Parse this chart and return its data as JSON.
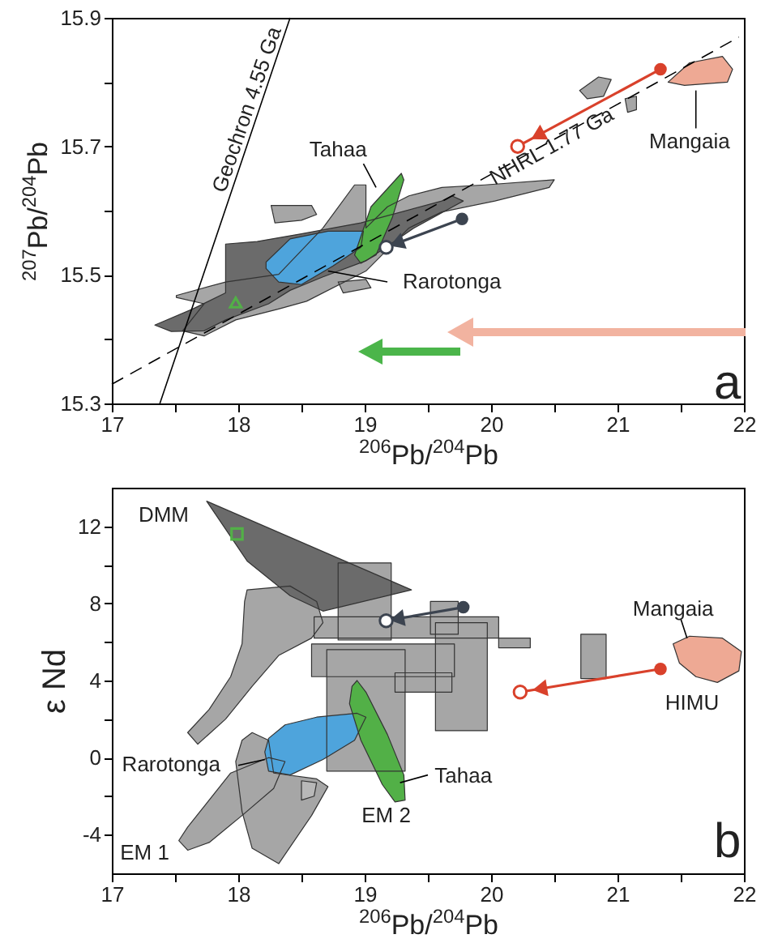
{
  "chart_data": [
    {
      "type": "area",
      "xlabel": "$^{206}$Pb/$^{204}$Pb",
      "ylabel": "$^{207}$Pb/$^{204}$Pb",
      "xlim": [
        17,
        22
      ],
      "ylim": [
        15.3,
        15.9
      ],
      "xticks": [
        17,
        {
          "value": 17.5,
          "label": null
        },
        18,
        {
          "value": 18.5,
          "label": null
        },
        19,
        {
          "value": 19.5,
          "label": null
        },
        20,
        {
          "value": 20.5,
          "label": null
        },
        21,
        {
          "value": 21.5,
          "label": null
        },
        22
      ],
      "yticks": [
        15.3,
        {
          "value": 15.4,
          "label": null
        },
        15.5,
        {
          "value": 15.6,
          "label": null
        },
        15.7,
        {
          "value": 15.8,
          "label": null
        },
        15.9
      ],
      "series": [
        {
          "type": "area",
          "color": "#a6a6a6",
          "x": [
            17.51,
            17.9,
            18.32,
            18.67,
            18.92,
            19.01,
            19.01,
            19.18,
            19.35,
            19.61,
            19.95,
            20.5,
            20.46,
            20.03,
            19.61,
            19.35,
            19.01,
            18.54,
            18.32,
            17.98,
            17.73,
            17.56,
            17.73,
            17.51
          ],
          "values": [
            15.468,
            15.489,
            15.501,
            15.573,
            15.64,
            15.64,
            15.573,
            15.606,
            15.623,
            15.636,
            15.64,
            15.648,
            15.636,
            15.615,
            15.598,
            15.573,
            15.506,
            15.459,
            15.447,
            15.43,
            15.405,
            15.413,
            15.455,
            15.465
          ]
        },
        {
          "type": "area",
          "color": "#6b6b6b",
          "x": [
            17.9,
            18.15,
            18.5,
            18.97,
            19.61,
            19.69,
            19.78,
            19.39,
            19.01,
            18.67,
            18.41,
            18.24,
            17.9,
            17.73,
            17.47,
            17.34,
            17.64,
            17.9,
            17.9
          ],
          "values": [
            15.548,
            15.552,
            15.564,
            15.581,
            15.615,
            15.623,
            15.615,
            15.573,
            15.522,
            15.497,
            15.476,
            15.455,
            15.43,
            15.413,
            15.412,
            15.422,
            15.447,
            15.472,
            15.514
          ]
        },
        {
          "type": "area",
          "color": "#a6a6a6",
          "x": [
            18.26,
            18.58,
            18.62,
            18.5,
            18.29
          ],
          "values": [
            15.608,
            15.608,
            15.594,
            15.585,
            15.581
          ]
        },
        {
          "type": "area",
          "color": "#a6a6a6",
          "x": [
            20.7,
            20.85,
            20.95,
            20.89,
            20.76
          ],
          "values": [
            15.787,
            15.808,
            15.804,
            15.778,
            15.774
          ]
        },
        {
          "type": "area",
          "color": "#a6a6a6",
          "x": [
            21.06,
            21.15,
            21.15,
            21.08
          ],
          "values": [
            15.774,
            15.778,
            15.757,
            15.753
          ]
        },
        {
          "type": "area",
          "color": "#a6a6a6",
          "x": [
            18.79,
            19.01,
            19.05,
            18.83
          ],
          "values": [
            15.489,
            15.493,
            15.48,
            15.472
          ]
        },
        {
          "type": "area",
          "color": "#4ea4dc",
          "x": [
            18.22,
            18.41,
            18.71,
            18.99,
            18.97,
            18.75,
            18.5,
            18.32,
            18.22
          ],
          "values": [
            15.52,
            15.556,
            15.568,
            15.568,
            15.543,
            15.514,
            15.485,
            15.489,
            15.51
          ]
        },
        {
          "type": "area",
          "color": "#52b047",
          "x": [
            18.92,
            19.05,
            19.29,
            19.31,
            19.22,
            19.09,
            18.97
          ],
          "values": [
            15.531,
            15.606,
            15.658,
            15.648,
            15.59,
            15.531,
            15.518
          ]
        },
        {
          "type": "area",
          "color": "#eea994",
          "x": [
            21.4,
            21.57,
            21.83,
            21.91,
            21.87,
            21.53
          ],
          "values": [
            15.8,
            15.83,
            15.84,
            15.82,
            15.8,
            15.795
          ]
        },
        {
          "type": "line",
          "color": "#000000",
          "x": [
            17.38,
            18.41
          ],
          "values": [
            15.3,
            15.9
          ]
        },
        {
          "type": "line",
          "color": "#000000",
          "line_style": "dashed",
          "x": [
            17,
            21.96
          ],
          "values": [
            15.33,
            15.87
          ]
        },
        {
          "type": "line",
          "color": "#000000",
          "x": [
            18.99,
            19.09
          ],
          "values": [
            15.673,
            15.636
          ]
        },
        {
          "type": "line",
          "color": "#000000",
          "x": [
            19.18,
            18.71
          ],
          "values": [
            15.489,
            15.506
          ]
        },
        {
          "type": "line",
          "color": "#000000",
          "x": [
            21.62,
            21.62
          ],
          "values": [
            15.787,
            15.728
          ]
        },
        {
          "type": "line",
          "color": "#d9412b",
          "marker": "circle",
          "x": [
            21.34,
            20.21
          ],
          "values": [
            15.82,
            15.7
          ]
        },
        {
          "type": "line",
          "color": "#3c4450",
          "marker": "circle",
          "x": [
            19.77,
            19.17
          ],
          "values": [
            15.587,
            15.543
          ]
        },
        {
          "type": "scatter",
          "color": "#52b047",
          "marker": "triangle",
          "x": [
            17.98
          ],
          "values": [
            15.457
          ]
        }
      ],
      "annotations": [
        "Geochron 4.55 Ga",
        "NHRL 1.77 Ga",
        "Tahaa",
        "Rarotonga",
        "Mangaia",
        "a"
      ]
    },
    {
      "type": "area",
      "xlabel": "$^{206}$Pb/$^{204}$Pb",
      "ylabel": "ε Nd",
      "xlim": [
        17,
        22
      ],
      "ylim": [
        -6,
        14
      ],
      "xticks": [
        17,
        {
          "value": 17.5,
          "label": null
        },
        18,
        {
          "value": 18.5,
          "label": null
        },
        19,
        {
          "value": 19.5,
          "label": null
        },
        20,
        {
          "value": 20.5,
          "label": null
        },
        21,
        {
          "value": 21.5,
          "label": null
        },
        22
      ],
      "yticks": [
        -4,
        {
          "value": -2,
          "label": null
        },
        0,
        {
          "value": 2,
          "label": null
        },
        4,
        {
          "value": 6,
          "label": null
        },
        8,
        {
          "value": 10,
          "label": null
        },
        12
      ],
      "series": [
        {
          "type": "area",
          "color": "#a6a6a6",
          "x": [
            18.79,
            19.21,
            19.21,
            18.79
          ],
          "values": [
            10.1,
            10.1,
            6.1,
            6.1
          ]
        },
        {
          "type": "area",
          "color": "#a6a6a6",
          "x": [
            18.07,
            18.41,
            18.62,
            18.67,
            18.58,
            18.32,
            18.11,
            17.9,
            17.68,
            17.6,
            17.77,
            17.94,
            18.03,
            18.05
          ],
          "values": [
            8.7,
            8.9,
            8.1,
            7,
            6.2,
            5.3,
            3.7,
            2,
            0.7,
            1.3,
            2.5,
            4.2,
            5.9,
            8.1
          ]
        },
        {
          "type": "area",
          "color": "#6b6b6b",
          "x": [
            17.75,
            19.37,
            18.67,
            18.41,
            18.07
          ],
          "values": [
            13.3,
            8.7,
            7.6,
            8.4,
            10.2
          ]
        },
        {
          "type": "area",
          "color": "#a6a6a6",
          "x": [
            18.6,
            20.06,
            20.06,
            18.6
          ],
          "values": [
            7.3,
            7.3,
            6.2,
            6.2
          ]
        },
        {
          "type": "area",
          "color": "#a6a6a6",
          "x": [
            19.52,
            19.74,
            19.74,
            19.52
          ],
          "values": [
            8.1,
            8.1,
            6.4,
            6.4
          ]
        },
        {
          "type": "area",
          "color": "#a6a6a6",
          "x": [
            18.58,
            19.71,
            19.71,
            18.58
          ],
          "values": [
            5.9,
            5.9,
            4.2,
            4.2
          ]
        },
        {
          "type": "area",
          "color": "#a6a6a6",
          "x": [
            19.56,
            19.97,
            19.97,
            19.56
          ],
          "values": [
            7,
            7,
            1.4,
            1.4
          ]
        },
        {
          "type": "area",
          "color": "#a6a6a6",
          "x": [
            18.7,
            19.32,
            19.32,
            18.7
          ],
          "values": [
            5.6,
            5.6,
            -0.7,
            -0.7
          ]
        },
        {
          "type": "area",
          "color": "#a6a6a6",
          "x": [
            19.24,
            19.69,
            19.69,
            19.24
          ],
          "values": [
            4.4,
            4.4,
            3.4,
            3.4
          ]
        },
        {
          "type": "area",
          "color": "#a6a6a6",
          "x": [
            20.06,
            20.31,
            20.31,
            20.06
          ],
          "values": [
            6.2,
            6.2,
            5.7,
            5.7
          ]
        },
        {
          "type": "area",
          "color": "#a6a6a6",
          "x": [
            20.71,
            20.91,
            20.91,
            20.71
          ],
          "values": [
            6.4,
            6.4,
            4.1,
            4.1
          ]
        },
        {
          "type": "area",
          "color": "#a6a6a6",
          "x": [
            17.53,
            17.6,
            17.94,
            18.24,
            18.37,
            18.28,
            18.03,
            17.77,
            17.6
          ],
          "values": [
            -4.3,
            -3.6,
            -0.8,
            0,
            -0.2,
            -1.6,
            -3,
            -4.4,
            -4.8
          ]
        },
        {
          "type": "area",
          "color": "#a6a6a6",
          "x": [
            18.03,
            18.11,
            18.24,
            18.28,
            18.62,
            18.71,
            18.58,
            18.32,
            18.11,
            18.03,
            17.98
          ],
          "values": [
            0.9,
            1.3,
            0.9,
            -0.8,
            -1.1,
            -1.5,
            -3,
            -5.5,
            -4.7,
            -2.8,
            -0.2
          ]
        },
        {
          "type": "area",
          "color": "#b8b8b8",
          "x": [
            18.5,
            18.62,
            18.6,
            18.5
          ],
          "values": [
            -1.2,
            -1.3,
            -2,
            -2.2
          ]
        },
        {
          "type": "area",
          "color": "#4ea4dc",
          "x": [
            18.24,
            18.37,
            18.62,
            18.94,
            19.01,
            18.92,
            18.67,
            18.41,
            18.24,
            18.21
          ],
          "values": [
            1,
            1.7,
            2.1,
            2.3,
            2.1,
            0.9,
            -0.1,
            -0.9,
            -0.7,
            0.3
          ]
        },
        {
          "type": "area",
          "color": "#52b047",
          "x": [
            18.9,
            18.94,
            19.01,
            19.18,
            19.31,
            19.32,
            19.24,
            19.14,
            18.97,
            18.88
          ],
          "values": [
            3.7,
            4,
            3.4,
            1.2,
            -0.9,
            -2.2,
            -2.3,
            -1.4,
            0.9,
            2.8
          ]
        },
        {
          "type": "area",
          "color": "#eea994",
          "x": [
            21.44,
            21.57,
            21.83,
            21.98,
            21.96,
            21.79,
            21.62,
            21.49
          ],
          "values": [
            5.9,
            6.3,
            6.2,
            5.5,
            4.5,
            3.9,
            4.2,
            4.9
          ]
        },
        {
          "type": "line",
          "color": "#000000",
          "x": [
            18.0,
            18.21
          ],
          "values": [
            -0.4,
            -0.1
          ]
        },
        {
          "type": "line",
          "color": "#000000",
          "x": [
            19.5,
            19.28
          ],
          "values": [
            -0.9,
            -1.3
          ]
        },
        {
          "type": "line",
          "color": "#000000",
          "x": [
            21.5,
            21.55
          ],
          "values": [
            7.2,
            6.2
          ]
        },
        {
          "type": "line",
          "color": "#d9412b",
          "marker": "circle",
          "x": [
            21.34,
            20.23
          ],
          "values": [
            4.6,
            3.4
          ]
        },
        {
          "type": "line",
          "color": "#3c4450",
          "marker": "circle",
          "x": [
            19.78,
            19.17
          ],
          "values": [
            7.8,
            7.1
          ]
        },
        {
          "type": "scatter",
          "color": "#52b047",
          "marker": "square",
          "x": [
            17.99
          ],
          "values": [
            11.6
          ]
        }
      ],
      "annotations": [
        "DMM",
        "Mangaia",
        "HIMU",
        "Rarotonga",
        "Tahaa",
        "EM 2",
        "EM 1",
        "b"
      ]
    }
  ]
}
